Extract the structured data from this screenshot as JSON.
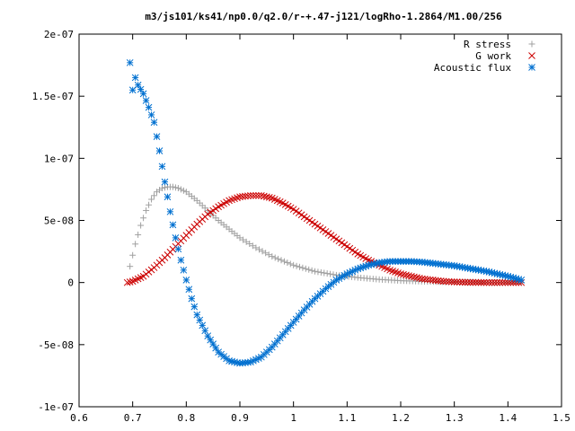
{
  "chart_data": {
    "type": "scatter",
    "title": "m3/js101/ks41/np0.0/q2.0/r-+.47-j121/logRho-1.2864/M1.00/256",
    "xlabel": "",
    "ylabel": "",
    "xlim": [
      0.6,
      1.5
    ],
    "ylim": [
      -1e-07,
      2e-07
    ],
    "xticks": [
      0.6,
      0.7,
      0.8,
      0.9,
      1,
      1.1,
      1.2,
      1.3,
      1.4,
      1.5
    ],
    "xtick_labels": [
      "0.6",
      "0.7",
      "0.8",
      "0.9",
      "1",
      "1.1",
      "1.2",
      "1.3",
      "1.4",
      "1.5"
    ],
    "yticks": [
      -1e-07,
      -5e-08,
      0,
      5e-08,
      1e-07,
      1.5e-07,
      2e-07
    ],
    "ytick_labels": [
      "-1e-07",
      "-5e-08",
      "0",
      "5e-08",
      "1e-07",
      "1.5e-07",
      "2e-07"
    ],
    "grid": false,
    "legend_position": "top-right",
    "series": [
      {
        "name": "R stress",
        "color": "#a0a0a0",
        "marker": "plus",
        "x": [
          0.695,
          0.705,
          0.715,
          0.725,
          0.735,
          0.745,
          0.755,
          0.765,
          0.775,
          0.785,
          0.8,
          0.82,
          0.84,
          0.86,
          0.88,
          0.9,
          0.93,
          0.96,
          1.0,
          1.04,
          1.08,
          1.12,
          1.16,
          1.2,
          1.25,
          1.3,
          1.35,
          1.4,
          1.425
        ],
        "y": [
          1.3e-08,
          3.1e-08,
          4.6e-08,
          5.8e-08,
          6.7e-08,
          7.3e-08,
          7.6e-08,
          7.7e-08,
          7.7e-08,
          7.6e-08,
          7.3e-08,
          6.6e-08,
          5.8e-08,
          5e-08,
          4.3e-08,
          3.6e-08,
          2.8e-08,
          2.1e-08,
          1.4e-08,
          9e-09,
          6e-09,
          4e-09,
          2.5e-09,
          1.5e-09,
          8e-10,
          4e-10,
          2e-10,
          1e-10,
          0
        ]
      },
      {
        "name": "G work",
        "color": "#cc0000",
        "marker": "cross",
        "x": [
          0.69,
          0.7,
          0.72,
          0.74,
          0.76,
          0.78,
          0.8,
          0.82,
          0.84,
          0.86,
          0.88,
          0.9,
          0.92,
          0.94,
          0.96,
          0.98,
          1.0,
          1.02,
          1.04,
          1.06,
          1.08,
          1.1,
          1.12,
          1.14,
          1.16,
          1.18,
          1.2,
          1.22,
          1.24,
          1.26,
          1.28,
          1.3,
          1.32,
          1.34,
          1.36,
          1.38,
          1.4,
          1.425
        ],
        "y": [
          0,
          1e-09,
          5e-09,
          1.2e-08,
          2e-08,
          2.9e-08,
          3.8e-08,
          4.7e-08,
          5.5e-08,
          6.1e-08,
          6.6e-08,
          6.9e-08,
          7e-08,
          7e-08,
          6.8e-08,
          6.4e-08,
          5.9e-08,
          5.3e-08,
          4.7e-08,
          4.1e-08,
          3.5e-08,
          2.9e-08,
          2.3e-08,
          1.8e-08,
          1.4e-08,
          1e-08,
          7e-09,
          5e-09,
          3e-09,
          2e-09,
          1e-09,
          5e-10,
          2e-10,
          1e-10,
          0,
          0,
          0,
          0
        ]
      },
      {
        "name": "Acoustic flux",
        "color": "#0070d0",
        "marker": "star",
        "x": [
          0.695,
          0.7,
          0.705,
          0.71,
          0.72,
          0.73,
          0.74,
          0.75,
          0.76,
          0.77,
          0.78,
          0.79,
          0.8,
          0.81,
          0.82,
          0.84,
          0.86,
          0.88,
          0.9,
          0.92,
          0.94,
          0.96,
          0.98,
          1.0,
          1.02,
          1.04,
          1.06,
          1.08,
          1.1,
          1.12,
          1.14,
          1.16,
          1.18,
          1.2,
          1.22,
          1.24,
          1.26,
          1.28,
          1.3,
          1.32,
          1.34,
          1.36,
          1.38,
          1.4,
          1.425
        ],
        "y": [
          1.77e-07,
          1.55e-07,
          1.65e-07,
          1.59e-07,
          1.52e-07,
          1.41e-07,
          1.29e-07,
          1.06e-07,
          8.1e-08,
          5.7e-08,
          3.6e-08,
          1.8e-08,
          2e-09,
          -1.3e-08,
          -2.6e-08,
          -4.3e-08,
          -5.6e-08,
          -6.3e-08,
          -6.5e-08,
          -6.4e-08,
          -6e-08,
          -5.2e-08,
          -4.2e-08,
          -3.2e-08,
          -2.2e-08,
          -1.3e-08,
          -5e-09,
          2e-09,
          7e-09,
          1.1e-08,
          1.4e-08,
          1.6e-08,
          1.7e-08,
          1.7e-08,
          1.7e-08,
          1.65e-08,
          1.55e-08,
          1.45e-08,
          1.35e-08,
          1.2e-08,
          1.05e-08,
          9e-09,
          7e-09,
          5e-09,
          2e-09
        ]
      }
    ]
  }
}
